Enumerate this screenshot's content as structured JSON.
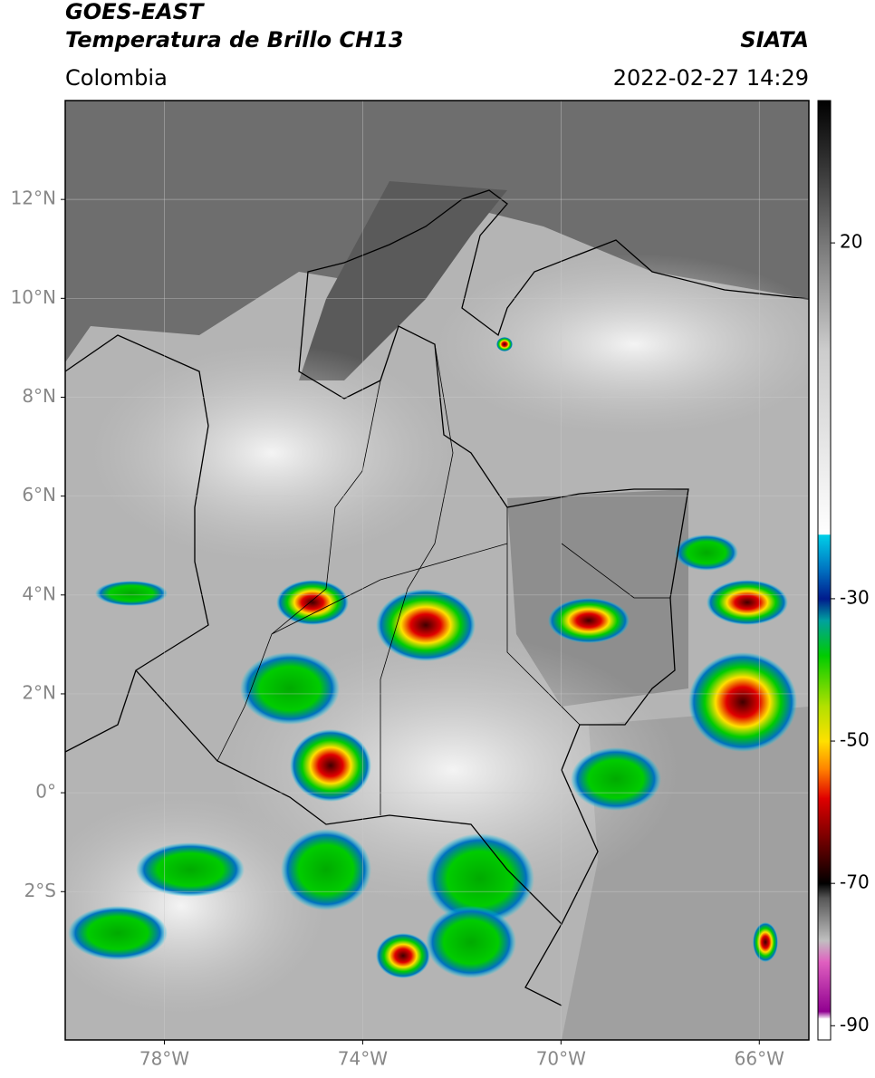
{
  "header": {
    "title": "GOES-EAST",
    "subtitle": "Temperatura de Brillo CH13",
    "source": "SIATA",
    "region": "Colombia",
    "datetime": "2022-02-27 14:29"
  },
  "chart_data": {
    "type": "map",
    "xlim": [
      -80,
      -65
    ],
    "ylim": [
      -5,
      14
    ],
    "xticks": [
      {
        "value": -78,
        "label": "78°W"
      },
      {
        "value": -74,
        "label": "74°W"
      },
      {
        "value": -70,
        "label": "70°W"
      },
      {
        "value": -66,
        "label": "66°W"
      }
    ],
    "yticks": [
      {
        "value": 12,
        "label": "12°N"
      },
      {
        "value": 10,
        "label": "10°N"
      },
      {
        "value": 8,
        "label": "8°N"
      },
      {
        "value": 6,
        "label": "6°N"
      },
      {
        "value": 4,
        "label": "4°N"
      },
      {
        "value": 2,
        "label": "2°N"
      },
      {
        "value": 0,
        "label": "0°"
      },
      {
        "value": -2,
        "label": "2°S"
      }
    ],
    "grid": true,
    "colorbar": {
      "lim": [
        -92,
        40
      ],
      "ticks": [
        20,
        -30,
        -50,
        -70,
        -90
      ],
      "stops": [
        {
          "value": 40,
          "color": "#000000"
        },
        {
          "value": 30,
          "color": "#3a3a3a"
        },
        {
          "value": 20,
          "color": "#777777"
        },
        {
          "value": 5,
          "color": "#cccccc"
        },
        {
          "value": -21,
          "color": "#ffffff"
        },
        {
          "value": -21,
          "color": "#00d0e8"
        },
        {
          "value": -26,
          "color": "#0070c0"
        },
        {
          "value": -30,
          "color": "#001a8c"
        },
        {
          "value": -33,
          "color": "#00a0a0"
        },
        {
          "value": -38,
          "color": "#00cc00"
        },
        {
          "value": -45,
          "color": "#b0e000"
        },
        {
          "value": -50,
          "color": "#ffe000"
        },
        {
          "value": -54,
          "color": "#ff8000"
        },
        {
          "value": -58,
          "color": "#e00000"
        },
        {
          "value": -64,
          "color": "#700000"
        },
        {
          "value": -70,
          "color": "#000000"
        },
        {
          "value": -72,
          "color": "#555555"
        },
        {
          "value": -78,
          "color": "#c0c0c0"
        },
        {
          "value": -81,
          "color": "#e060c0"
        },
        {
          "value": -88,
          "color": "#900090"
        },
        {
          "value": -89,
          "color": "#ffffff"
        },
        {
          "value": -92,
          "color": "#ffffff"
        }
      ]
    }
  }
}
